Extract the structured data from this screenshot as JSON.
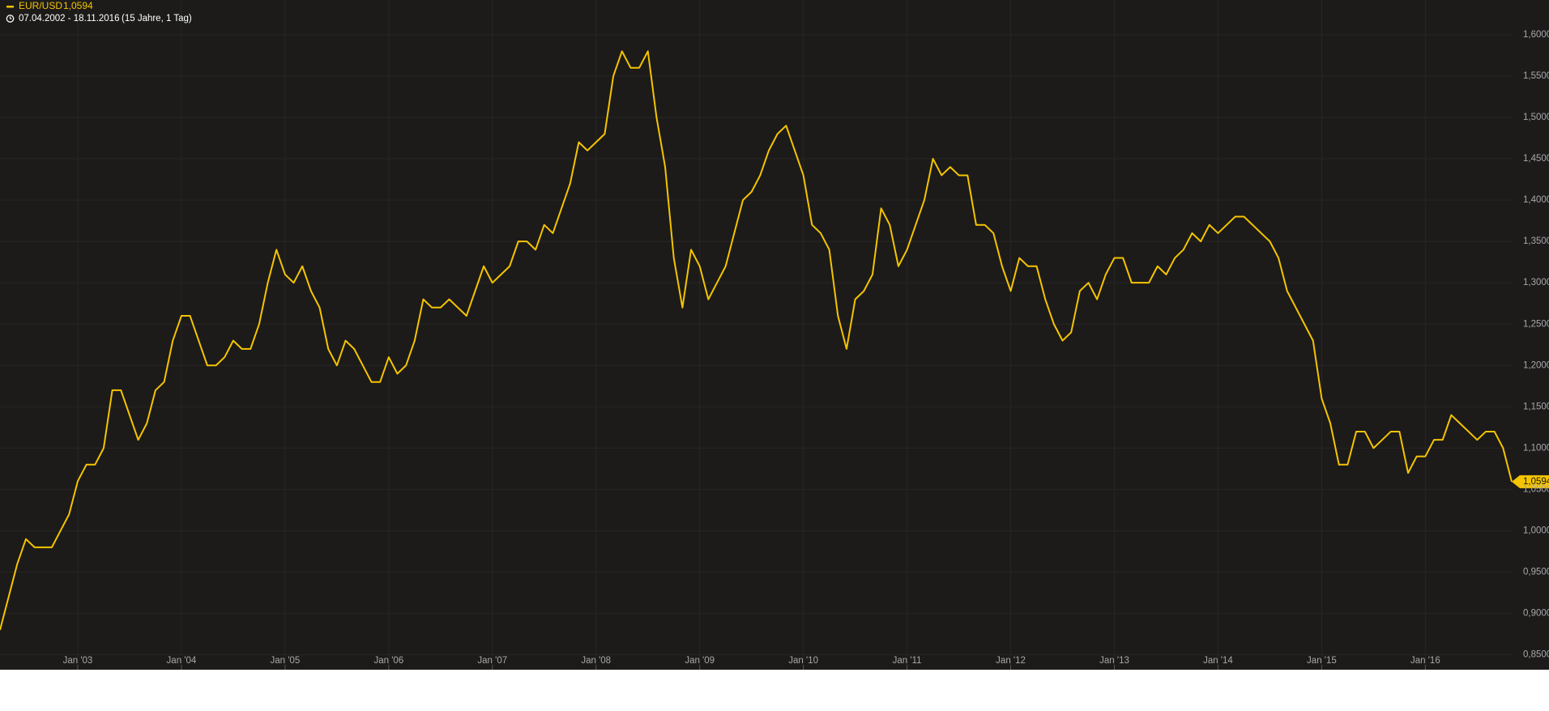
{
  "chart_data": {
    "type": "line",
    "header": {
      "name": "EUR/USD",
      "range": "07.04.2002 - 18.11.2016",
      "span": "(15 Jahre, 1 Tag)"
    },
    "last": {
      "value": 1.0594,
      "label": "1,0594"
    },
    "xlim": [
      "2002-04",
      "2016-11"
    ],
    "xticks": [
      {
        "value": "2003-01",
        "label": "Jan '03"
      },
      {
        "value": "2004-01",
        "label": "Jan '04"
      },
      {
        "value": "2005-01",
        "label": "Jan '05"
      },
      {
        "value": "2006-01",
        "label": "Jan '06"
      },
      {
        "value": "2007-01",
        "label": "Jan '07"
      },
      {
        "value": "2008-01",
        "label": "Jan '08"
      },
      {
        "value": "2009-01",
        "label": "Jan '09"
      },
      {
        "value": "2010-01",
        "label": "Jan '10"
      },
      {
        "value": "2011-01",
        "label": "Jan '11"
      },
      {
        "value": "2012-01",
        "label": "Jan '12"
      },
      {
        "value": "2013-01",
        "label": "Jan '13"
      },
      {
        "value": "2014-01",
        "label": "Jan '14"
      },
      {
        "value": "2015-01",
        "label": "Jan '15"
      },
      {
        "value": "2016-01",
        "label": "Jan '16"
      }
    ],
    "ylim": [
      0.832,
      1.642
    ],
    "yticks": [
      {
        "value": 0.85,
        "label": "0,8500"
      },
      {
        "value": 0.9,
        "label": "0,9000"
      },
      {
        "value": 0.95,
        "label": "0,9500"
      },
      {
        "value": 1.0,
        "label": "1,0000"
      },
      {
        "value": 1.05,
        "label": "1,0500"
      },
      {
        "value": 1.1,
        "label": "1,1000"
      },
      {
        "value": 1.15,
        "label": "1,1500"
      },
      {
        "value": 1.2,
        "label": "1,2000"
      },
      {
        "value": 1.25,
        "label": "1,2500"
      },
      {
        "value": 1.3,
        "label": "1,3000"
      },
      {
        "value": 1.35,
        "label": "1,3500"
      },
      {
        "value": 1.4,
        "label": "1,4000"
      },
      {
        "value": 1.45,
        "label": "1,4500"
      },
      {
        "value": 1.5,
        "label": "1,5000"
      },
      {
        "value": 1.55,
        "label": "1,5500"
      },
      {
        "value": 1.6,
        "label": "1,6000"
      }
    ],
    "grid": true,
    "x": [
      "2002-04",
      "2002-05",
      "2002-06",
      "2002-07",
      "2002-08",
      "2002-09",
      "2002-10",
      "2002-11",
      "2002-12",
      "2003-01",
      "2003-02",
      "2003-03",
      "2003-04",
      "2003-05",
      "2003-06",
      "2003-07",
      "2003-08",
      "2003-09",
      "2003-10",
      "2003-11",
      "2003-12",
      "2004-01",
      "2004-02",
      "2004-03",
      "2004-04",
      "2004-05",
      "2004-06",
      "2004-07",
      "2004-08",
      "2004-09",
      "2004-10",
      "2004-11",
      "2004-12",
      "2005-01",
      "2005-02",
      "2005-03",
      "2005-04",
      "2005-05",
      "2005-06",
      "2005-07",
      "2005-08",
      "2005-09",
      "2005-10",
      "2005-11",
      "2005-12",
      "2006-01",
      "2006-02",
      "2006-03",
      "2006-04",
      "2006-05",
      "2006-06",
      "2006-07",
      "2006-08",
      "2006-09",
      "2006-10",
      "2006-11",
      "2006-12",
      "2007-01",
      "2007-02",
      "2007-03",
      "2007-04",
      "2007-05",
      "2007-06",
      "2007-07",
      "2007-08",
      "2007-09",
      "2007-10",
      "2007-11",
      "2007-12",
      "2008-01",
      "2008-02",
      "2008-03",
      "2008-04",
      "2008-05",
      "2008-06",
      "2008-07",
      "2008-08",
      "2008-09",
      "2008-10",
      "2008-11",
      "2008-12",
      "2009-01",
      "2009-02",
      "2009-03",
      "2009-04",
      "2009-05",
      "2009-06",
      "2009-07",
      "2009-08",
      "2009-09",
      "2009-10",
      "2009-11",
      "2009-12",
      "2010-01",
      "2010-02",
      "2010-03",
      "2010-04",
      "2010-05",
      "2010-06",
      "2010-07",
      "2010-08",
      "2010-09",
      "2010-10",
      "2010-11",
      "2010-12",
      "2011-01",
      "2011-02",
      "2011-03",
      "2011-04",
      "2011-05",
      "2011-06",
      "2011-07",
      "2011-08",
      "2011-09",
      "2011-10",
      "2011-11",
      "2011-12",
      "2012-01",
      "2012-02",
      "2012-03",
      "2012-04",
      "2012-05",
      "2012-06",
      "2012-07",
      "2012-08",
      "2012-09",
      "2012-10",
      "2012-11",
      "2012-12",
      "2013-01",
      "2013-02",
      "2013-03",
      "2013-04",
      "2013-05",
      "2013-06",
      "2013-07",
      "2013-08",
      "2013-09",
      "2013-10",
      "2013-11",
      "2013-12",
      "2014-01",
      "2014-02",
      "2014-03",
      "2014-04",
      "2014-05",
      "2014-06",
      "2014-07",
      "2014-08",
      "2014-09",
      "2014-10",
      "2014-11",
      "2014-12",
      "2015-01",
      "2015-02",
      "2015-03",
      "2015-04",
      "2015-05",
      "2015-06",
      "2015-07",
      "2015-08",
      "2015-09",
      "2015-10",
      "2015-11",
      "2015-12",
      "2016-01",
      "2016-02",
      "2016-03",
      "2016-04",
      "2016-05",
      "2016-06",
      "2016-07",
      "2016-08",
      "2016-09",
      "2016-10",
      "2016-11"
    ],
    "series": [
      {
        "name": "EUR/USD",
        "color": "#f5c400",
        "values": [
          0.88,
          0.92,
          0.96,
          0.99,
          0.98,
          0.98,
          0.98,
          1.0,
          1.02,
          1.06,
          1.08,
          1.08,
          1.1,
          1.17,
          1.17,
          1.14,
          1.11,
          1.13,
          1.17,
          1.18,
          1.23,
          1.26,
          1.26,
          1.23,
          1.2,
          1.2,
          1.21,
          1.23,
          1.22,
          1.22,
          1.25,
          1.3,
          1.34,
          1.31,
          1.3,
          1.32,
          1.29,
          1.27,
          1.22,
          1.2,
          1.23,
          1.22,
          1.2,
          1.18,
          1.18,
          1.21,
          1.19,
          1.2,
          1.23,
          1.28,
          1.27,
          1.27,
          1.28,
          1.27,
          1.26,
          1.29,
          1.32,
          1.3,
          1.31,
          1.32,
          1.35,
          1.35,
          1.34,
          1.37,
          1.36,
          1.39,
          1.42,
          1.47,
          1.46,
          1.47,
          1.48,
          1.55,
          1.58,
          1.56,
          1.56,
          1.58,
          1.5,
          1.44,
          1.33,
          1.27,
          1.34,
          1.32,
          1.28,
          1.3,
          1.32,
          1.36,
          1.4,
          1.41,
          1.43,
          1.46,
          1.48,
          1.49,
          1.46,
          1.43,
          1.37,
          1.36,
          1.34,
          1.26,
          1.22,
          1.28,
          1.29,
          1.31,
          1.39,
          1.37,
          1.32,
          1.34,
          1.37,
          1.4,
          1.45,
          1.43,
          1.44,
          1.43,
          1.43,
          1.37,
          1.37,
          1.36,
          1.32,
          1.29,
          1.33,
          1.32,
          1.32,
          1.28,
          1.25,
          1.23,
          1.24,
          1.29,
          1.3,
          1.28,
          1.31,
          1.33,
          1.33,
          1.3,
          1.3,
          1.3,
          1.32,
          1.31,
          1.33,
          1.34,
          1.36,
          1.35,
          1.37,
          1.36,
          1.37,
          1.38,
          1.38,
          1.37,
          1.36,
          1.35,
          1.33,
          1.29,
          1.27,
          1.25,
          1.23,
          1.16,
          1.13,
          1.08,
          1.08,
          1.12,
          1.12,
          1.1,
          1.11,
          1.12,
          1.12,
          1.07,
          1.09,
          1.09,
          1.11,
          1.11,
          1.14,
          1.13,
          1.12,
          1.11,
          1.12,
          1.12,
          1.1,
          1.0594
        ]
      }
    ]
  }
}
